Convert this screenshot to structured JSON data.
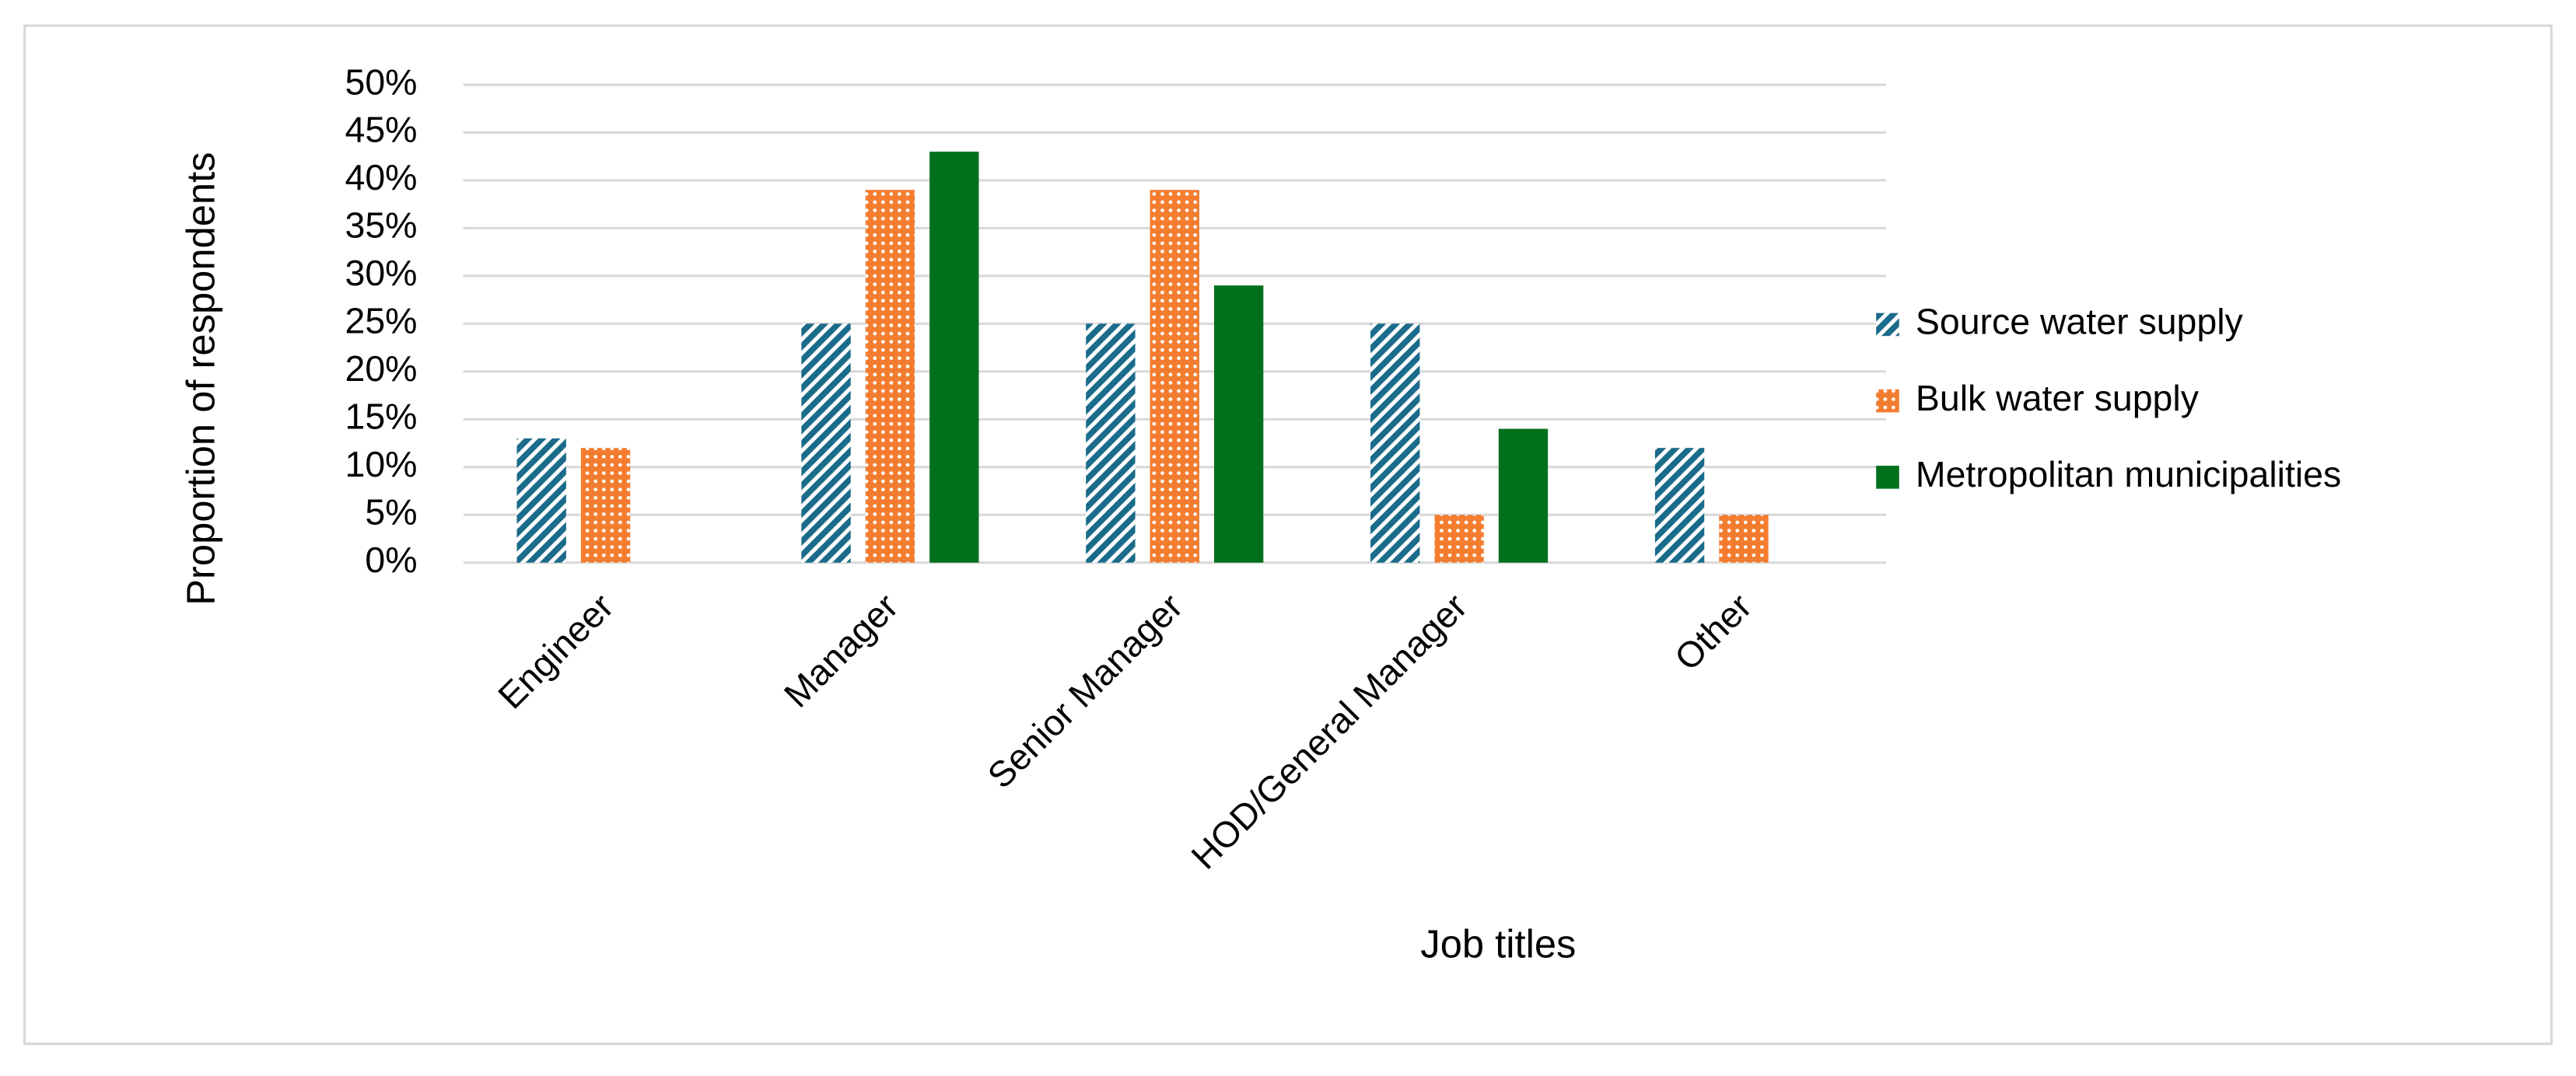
{
  "chart_data": {
    "type": "bar",
    "categories": [
      "Engineer",
      "Manager",
      "Senior Manager",
      "HOD/General Manager",
      "Other"
    ],
    "series": [
      {
        "name": "Source water supply",
        "color": "#1b6b8a",
        "pattern": "diagonal",
        "values": [
          13,
          25,
          25,
          25,
          12
        ]
      },
      {
        "name": "Bulk water supply",
        "color": "#f47c30",
        "pattern": "dots",
        "values": [
          12,
          39,
          39,
          5,
          5
        ]
      },
      {
        "name": "Metropolitan municipalities",
        "color": "#00701c",
        "pattern": "solid",
        "values": [
          null,
          43,
          29,
          14,
          null
        ]
      }
    ],
    "x_label": "Job titles",
    "y_label": "Proportion of respondents",
    "ylim": [
      0,
      50
    ],
    "yticks": [
      {
        "value": 0,
        "label": "0%"
      },
      {
        "value": 5,
        "label": "5%"
      },
      {
        "value": 10,
        "label": "10%"
      },
      {
        "value": 15,
        "label": "15%"
      },
      {
        "value": 20,
        "label": "20%"
      },
      {
        "value": 25,
        "label": "25%"
      },
      {
        "value": 30,
        "label": "30%"
      },
      {
        "value": 35,
        "label": "35%"
      },
      {
        "value": 40,
        "label": "40%"
      },
      {
        "value": 45,
        "label": "45%"
      },
      {
        "value": 50,
        "label": "50%"
      }
    ],
    "grid": true,
    "legend": "right"
  }
}
